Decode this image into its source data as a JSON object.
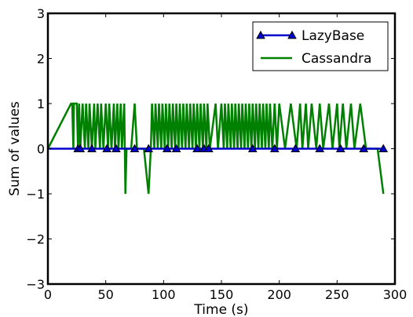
{
  "chart_data": {
    "type": "line",
    "xlabel": "Time (s)",
    "ylabel": "Sum of values",
    "xlim": [
      0,
      300
    ],
    "ylim": [
      -3,
      3
    ],
    "xticks": [
      0,
      50,
      100,
      150,
      200,
      250,
      300
    ],
    "yticks": [
      3,
      2,
      1,
      0,
      -1,
      -2,
      -3
    ],
    "grid": false,
    "legend_position": "top-right",
    "series": [
      {
        "name": "LazyBase",
        "color": "#0000cc",
        "marker": "triangle",
        "x": [
          26,
          28,
          38,
          51,
          59,
          75,
          87,
          103,
          111,
          129,
          135,
          139,
          177,
          196,
          214,
          235,
          253,
          273,
          290
        ],
        "y": [
          0,
          0,
          0,
          0,
          0,
          0,
          0,
          0,
          0,
          0,
          0,
          0,
          0,
          0,
          0,
          0,
          0,
          0,
          0
        ]
      },
      {
        "name": "Cassandra",
        "color": "#008000",
        "marker": "none",
        "x": [
          0,
          20,
          21,
          22,
          22.5,
          25,
          26,
          27,
          28,
          30,
          32,
          33,
          35,
          36,
          38,
          40,
          41,
          43,
          45,
          46,
          48,
          50,
          52,
          53,
          55,
          57,
          58,
          60,
          61,
          63,
          64,
          66,
          67,
          68,
          70,
          72,
          75,
          77,
          80,
          83,
          87,
          89,
          90,
          92,
          93,
          95,
          96,
          98,
          99,
          101,
          102,
          104,
          105,
          107,
          108,
          110,
          111,
          113,
          114,
          116,
          117,
          119,
          120,
          122,
          123,
          125,
          126,
          128,
          129,
          131,
          132,
          134,
          135,
          137,
          138,
          140,
          145,
          147,
          150,
          152,
          153,
          155,
          156,
          158,
          159,
          161,
          162,
          164,
          165,
          167,
          168,
          170,
          171,
          173,
          174,
          176,
          177,
          179,
          180,
          182,
          183,
          185,
          186,
          188,
          189,
          191,
          192,
          194,
          196,
          198,
          200,
          205,
          210,
          215,
          218,
          220,
          223,
          225,
          228,
          232,
          235,
          238,
          243,
          246,
          250,
          252,
          255,
          258,
          262,
          265,
          270,
          275,
          280,
          285,
          290
        ],
        "y": [
          0,
          1,
          1,
          0,
          1,
          1,
          0,
          1,
          0,
          1,
          0,
          1,
          0,
          1,
          0,
          1,
          0,
          1,
          0,
          1,
          0,
          1,
          0,
          1,
          0,
          1,
          0,
          1,
          0,
          1,
          0,
          1,
          -1,
          0,
          0,
          0,
          1,
          0,
          0,
          0,
          -1,
          0,
          1,
          0,
          1,
          0,
          1,
          0,
          1,
          0,
          1,
          0,
          1,
          0,
          1,
          0,
          1,
          0,
          1,
          0,
          1,
          0,
          1,
          0,
          1,
          0,
          1,
          0,
          1,
          0,
          1,
          0,
          1,
          0,
          1,
          0,
          1,
          0,
          1,
          0,
          1,
          0,
          1,
          0,
          1,
          0,
          1,
          0,
          1,
          0,
          1,
          0,
          1,
          0,
          1,
          0,
          1,
          0,
          1,
          0,
          1,
          0,
          1,
          0,
          1,
          0,
          1,
          0,
          1,
          0,
          1,
          0,
          1,
          0,
          1,
          0,
          1,
          0,
          1,
          0,
          1,
          0,
          1,
          0,
          1,
          0,
          1,
          0,
          1,
          0,
          1,
          0,
          0,
          0,
          -1
        ]
      }
    ]
  }
}
